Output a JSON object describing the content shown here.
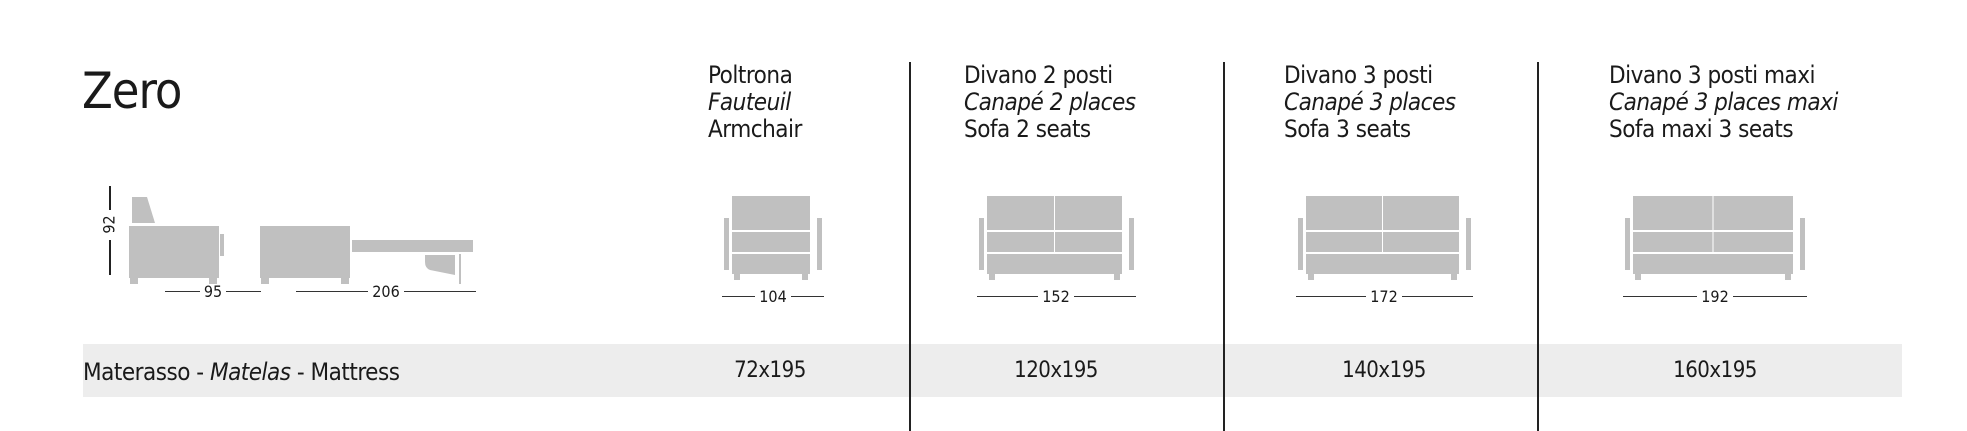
{
  "title": "Zero",
  "side_dims": {
    "height": "92",
    "depth": "95",
    "open_length": "206"
  },
  "columns": [
    {
      "it": "Poltrona",
      "fr": "Fauteuil",
      "en": "Armchair",
      "width": "104",
      "mattress": "72x195",
      "seats": 1
    },
    {
      "it": "Divano 2 posti",
      "fr": "Canapé 2 places",
      "en": "Sofa 2 seats",
      "width": "152",
      "mattress": "120x195",
      "seats": 2
    },
    {
      "it": "Divano 3 posti",
      "fr": "Canapé 3 places",
      "en": "Sofa 3 seats",
      "width": "172",
      "mattress": "140x195",
      "seats": 2
    },
    {
      "it": "Divano 3 posti maxi",
      "fr": "Canapé 3 places maxi",
      "en": "Sofa maxi 3 seats",
      "width": "192",
      "mattress": "160x195",
      "seats": 2
    }
  ],
  "mattress_row": {
    "it": "Materasso",
    "fr": "Matelas",
    "en": "Mattress",
    "sep": " - "
  },
  "colors": {
    "drawing": "#c0c0c0",
    "band": "#ededed",
    "rule": "#222222"
  }
}
